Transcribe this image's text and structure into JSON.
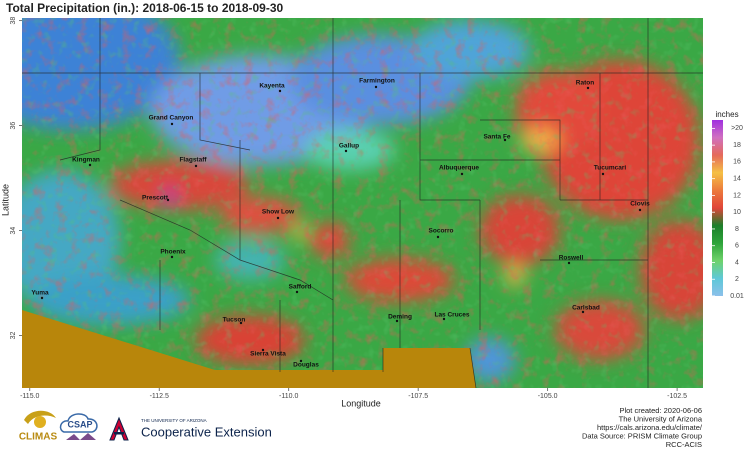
{
  "title": "Total Precipitation (in.): 2018-06-15 to 2018-09-30",
  "map": {
    "x_axis": {
      "label": "Longitude",
      "lim": [
        -115.15,
        -102.0
      ],
      "ticks": [
        {
          "value": -115,
          "label": "-115.0"
        },
        {
          "value": -112.5,
          "label": "-112.5"
        },
        {
          "value": -110,
          "label": "-110.0"
        },
        {
          "value": -107.5,
          "label": "-107.5"
        },
        {
          "value": -105,
          "label": "-105.0"
        },
        {
          "value": -102.5,
          "label": "-102.5"
        }
      ]
    },
    "y_axis": {
      "label": "Latitude",
      "lim": [
        31,
        38.05
      ],
      "ticks": [
        32,
        34,
        36,
        38
      ]
    },
    "cities": [
      "Farmington",
      "Kayenta",
      "Raton",
      "Grand Canyon",
      "Santa Fe",
      "Gallup",
      "Kingman",
      "Flagstaff",
      "Albuquerque",
      "Tucumcari",
      "Prescott",
      "Clovis",
      "Show Low",
      "Socorro",
      "Phoenix",
      "Roswell",
      "Yuma",
      "Safford",
      "Carlsbad",
      "Deming",
      "Las Cruces",
      "Tucson",
      "Sierra Vista",
      "Douglas"
    ],
    "legend": {
      "title": "inches",
      "lim": [
        0,
        21
      ],
      "ticks": [
        {
          "value": 20,
          "label": ">20"
        },
        18,
        16,
        14,
        12,
        10,
        8,
        6,
        4,
        2,
        0.01
      ]
    }
  },
  "credits": [
    "Plot created: 2020-06-06",
    "The University of Arizona",
    "https://cals.arizona.edu/climate/",
    "Data Source: PRISM Climate Group",
    "RCC-ACIS"
  ],
  "logos": {
    "climas": "CLIMAS",
    "csap": "CSAP",
    "university": "THE UNIVERSITY OF ARIZONA",
    "extension": "Cooperative Extension"
  }
}
